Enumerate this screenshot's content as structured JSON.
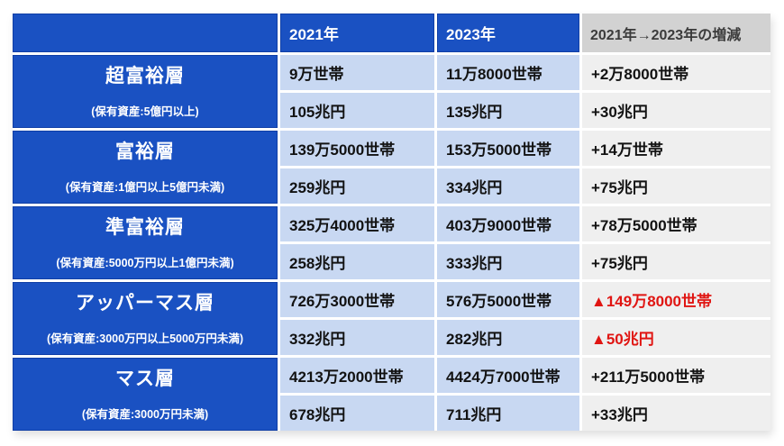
{
  "colors": {
    "header_blue": "#1A51C2",
    "header_blue_border": "#0F3EA6",
    "cell_light_blue": "#C8D8F2",
    "header_gray": "#D2D2D2",
    "cell_light_gray": "#EFEFEF",
    "negative_red": "#E01512",
    "text_white": "#FFFFFF",
    "text_dark": "#121212"
  },
  "chart_data": {
    "type": "table",
    "columns": {
      "category": "",
      "y2021": "2021年",
      "y2023": "2023年",
      "change": "2021年→2023年の増減"
    },
    "tiers": [
      {
        "name": "超富裕層",
        "note": "(保有資産:5億円以上)",
        "households_2021": "9万世帯",
        "households_2023": "11万8000世帯",
        "households_change": "+2万8000世帯",
        "households_change_negative": false,
        "assets_2021": "105兆円",
        "assets_2023": "135兆円",
        "assets_change": "+30兆円",
        "assets_change_negative": false
      },
      {
        "name": "富裕層",
        "note": "(保有資産:1億円以上5億円未満)",
        "households_2021": "139万5000世帯",
        "households_2023": "153万5000世帯",
        "households_change": "+14万世帯",
        "households_change_negative": false,
        "assets_2021": "259兆円",
        "assets_2023": "334兆円",
        "assets_change": "+75兆円",
        "assets_change_negative": false
      },
      {
        "name": "準富裕層",
        "note": "(保有資産:5000万円以上1億円未満)",
        "households_2021": "325万4000世帯",
        "households_2023": "403万9000世帯",
        "households_change": "+78万5000世帯",
        "households_change_negative": false,
        "assets_2021": "258兆円",
        "assets_2023": "333兆円",
        "assets_change": "+75兆円",
        "assets_change_negative": false
      },
      {
        "name": "アッパーマス層",
        "note": "(保有資産:3000万円以上5000万円未満)",
        "households_2021": "726万3000世帯",
        "households_2023": "576万5000世帯",
        "households_change": "▲149万8000世帯",
        "households_change_negative": true,
        "assets_2021": "332兆円",
        "assets_2023": "282兆円",
        "assets_change": "▲50兆円",
        "assets_change_negative": true
      },
      {
        "name": "マス層",
        "note": "(保有資産:3000万円未満)",
        "households_2021": "4213万2000世帯",
        "households_2023": "4424万7000世帯",
        "households_change": "+211万5000世帯",
        "households_change_negative": false,
        "assets_2021": "678兆円",
        "assets_2023": "711兆円",
        "assets_change": "+33兆円",
        "assets_change_negative": false
      }
    ]
  }
}
